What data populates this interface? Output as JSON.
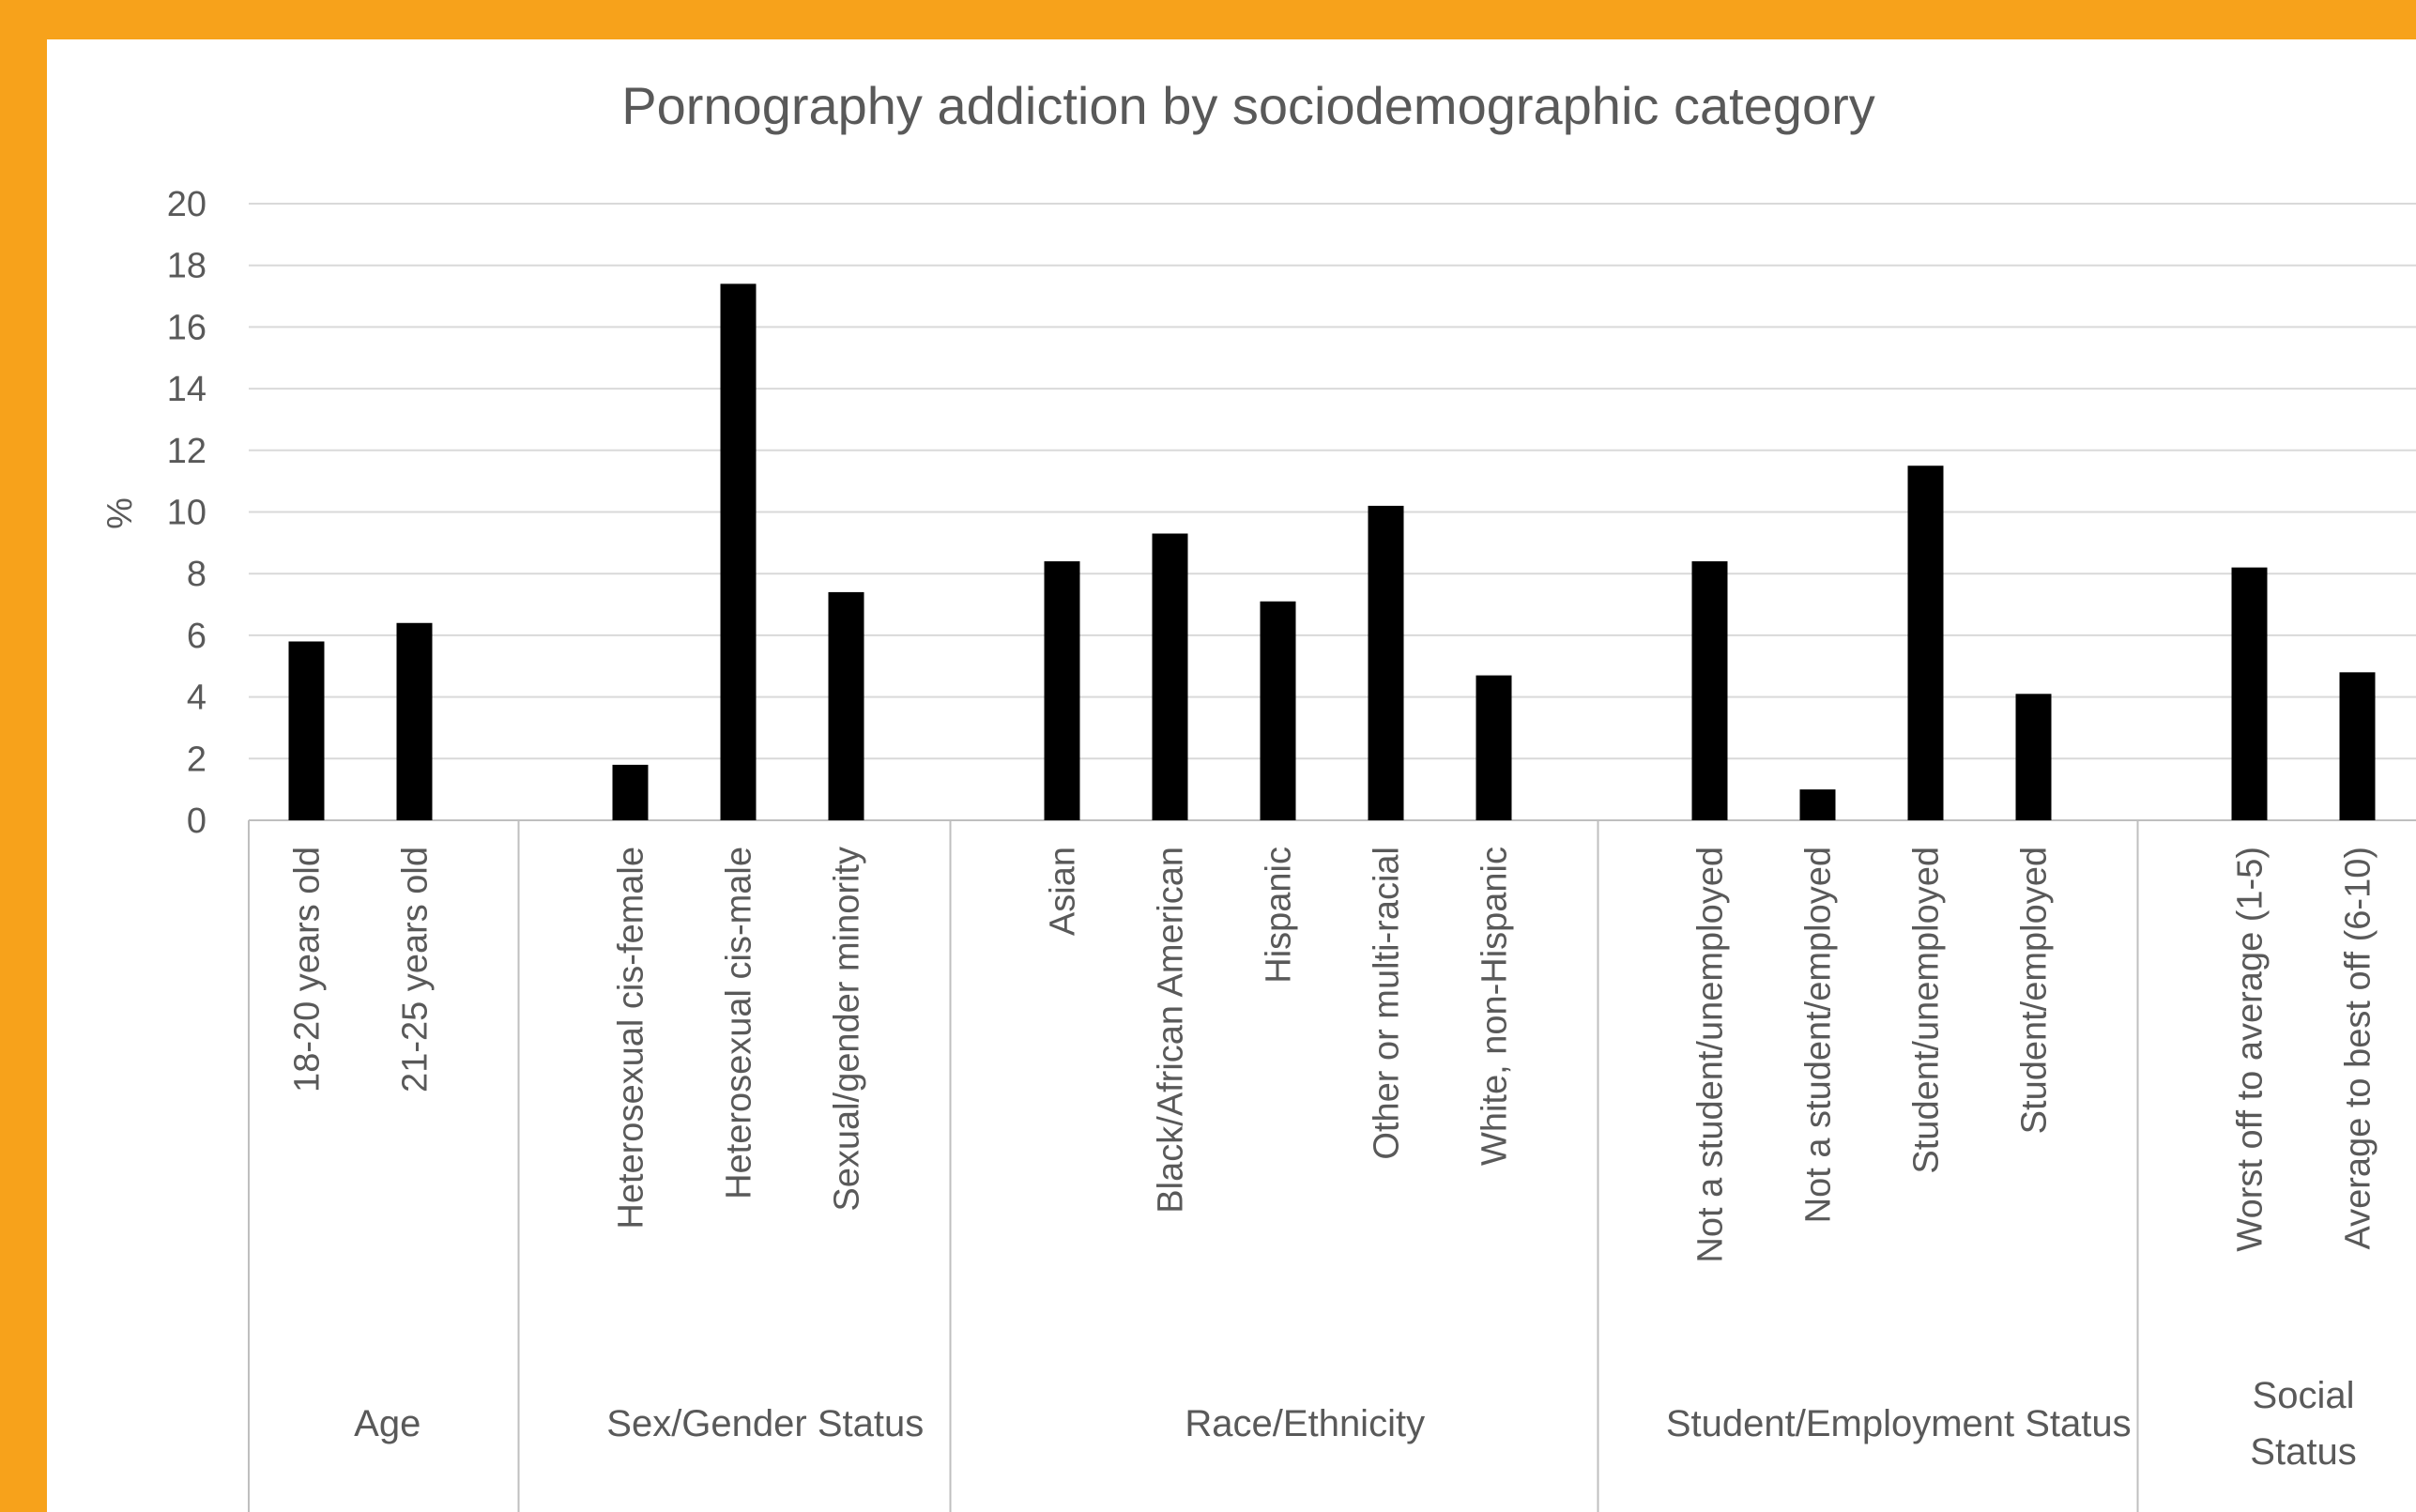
{
  "colors": {
    "frame": "#F7A21B",
    "background": "#FFFFFF",
    "bar": "#000000",
    "text": "#595959",
    "gridline": "#D9D9D9",
    "axis": "#BFBFBF"
  },
  "chart_data": {
    "type": "bar",
    "title": "Pornography addiction by sociodemographic category",
    "ylabel": "%",
    "ylim": [
      0,
      20
    ],
    "yticks": [
      0,
      2,
      4,
      6,
      8,
      10,
      12,
      14,
      16,
      18,
      20
    ],
    "grid": true,
    "legend": "none",
    "groups": [
      {
        "name": "Age",
        "categories": [
          "18-20 years old",
          "21-25 years old"
        ],
        "values": [
          5.8,
          6.4
        ]
      },
      {
        "name": "Sex/Gender Status",
        "categories": [
          "Heterosexual cis-female",
          "Heterosexual cis-male",
          "Sexual/gender minority"
        ],
        "values": [
          1.8,
          17.4,
          7.4
        ]
      },
      {
        "name": "Race/Ethnicity",
        "categories": [
          "Asian",
          "Black/African American",
          "Hispanic",
          "Other or multi-racial",
          "White, non-Hispanic"
        ],
        "values": [
          8.4,
          9.3,
          7.1,
          10.2,
          4.7
        ]
      },
      {
        "name": "Student/Employment Status",
        "categories": [
          "Not a student/unemployed",
          "Not a student/employed",
          "Student/unemployed",
          "Student/employed"
        ],
        "values": [
          8.4,
          1.0,
          11.5,
          4.1
        ]
      },
      {
        "name": "Social\nStatus",
        "categories": [
          "Worst off to average (1-5)",
          "Average to best off (6-10)"
        ],
        "values": [
          8.2,
          4.8
        ]
      }
    ]
  }
}
